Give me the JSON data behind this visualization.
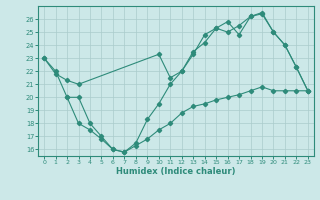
{
  "line1_x": [
    0,
    1,
    2,
    3,
    10,
    11,
    12,
    13,
    14,
    15,
    16,
    17,
    18,
    19,
    20,
    21,
    22,
    23
  ],
  "line1_y": [
    23.0,
    21.8,
    21.3,
    21.0,
    23.3,
    21.5,
    22.0,
    23.5,
    24.2,
    25.3,
    25.8,
    24.8,
    26.2,
    26.5,
    25.0,
    24.0,
    22.3,
    20.5
  ],
  "line2_x": [
    0,
    1,
    2,
    3,
    4,
    5,
    6,
    7,
    8,
    9,
    10,
    11,
    12,
    13,
    14,
    15,
    16,
    17,
    18,
    19,
    20,
    21,
    22,
    23
  ],
  "line2_y": [
    23.0,
    22.0,
    20.0,
    20.0,
    18.0,
    17.0,
    16.0,
    15.8,
    16.5,
    18.3,
    19.5,
    21.0,
    22.0,
    23.3,
    24.8,
    25.3,
    25.0,
    25.5,
    26.2,
    26.4,
    25.0,
    24.0,
    22.3,
    20.5
  ],
  "line3_x": [
    2,
    3,
    4,
    5,
    6,
    7,
    8,
    9,
    10,
    11,
    12,
    13,
    14,
    15,
    16,
    17,
    18,
    19,
    20,
    21,
    22,
    23
  ],
  "line3_y": [
    20.0,
    18.0,
    17.5,
    16.8,
    16.0,
    15.8,
    16.3,
    16.8,
    17.5,
    18.0,
    18.8,
    19.3,
    19.5,
    19.8,
    20.0,
    20.2,
    20.5,
    20.8,
    20.5,
    20.5,
    20.5,
    20.5
  ],
  "color": "#2e8b7a",
  "bg_color": "#cce8e8",
  "grid_color": "#aacccc",
  "xlabel": "Humidex (Indice chaleur)",
  "ylim": [
    15.5,
    27
  ],
  "xlim": [
    -0.5,
    23.5
  ],
  "yticks": [
    16,
    17,
    18,
    19,
    20,
    21,
    22,
    23,
    24,
    25,
    26
  ],
  "xticks": [
    0,
    1,
    2,
    3,
    4,
    5,
    6,
    7,
    8,
    9,
    10,
    11,
    12,
    13,
    14,
    15,
    16,
    17,
    18,
    19,
    20,
    21,
    22,
    23
  ]
}
